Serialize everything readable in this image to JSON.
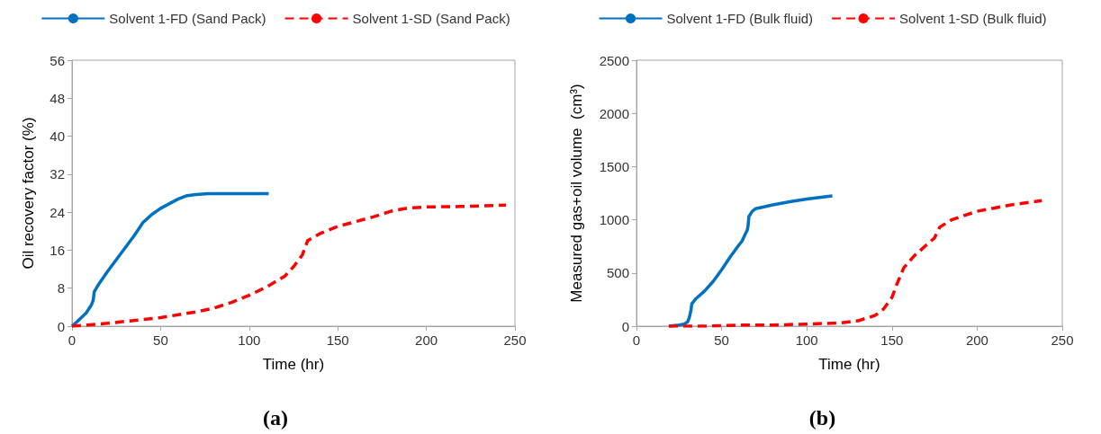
{
  "chart_data": [
    {
      "type": "line",
      "xlabel": "Time (hr)",
      "ylabel": "Oil recovery factor (%)",
      "xlim": [
        0,
        250
      ],
      "xticks": [
        0,
        50,
        100,
        150,
        200,
        250
      ],
      "ylim": [
        0,
        56
      ],
      "yticks": [
        0,
        8,
        16,
        24,
        32,
        40,
        48,
        56
      ],
      "grid": false,
      "legend": "top",
      "marker": "none",
      "annotations": [
        "(a)"
      ],
      "series": [
        {
          "name": "Solvent 1-FD (Sand Pack)",
          "color": "#0070c0",
          "line_style": "solid",
          "x": [
            0,
            3,
            8,
            11,
            12,
            12.5,
            15,
            20,
            25,
            30,
            35,
            40,
            45,
            50,
            55,
            60,
            65,
            70,
            77,
            90,
            111
          ],
          "values": [
            0,
            1,
            2.8,
            4.5,
            5.5,
            7.2,
            8.8,
            11.5,
            14,
            16.5,
            19,
            21.8,
            23.5,
            24.8,
            25.8,
            26.8,
            27.5,
            27.7,
            27.9,
            27.9,
            27.9
          ]
        },
        {
          "name": "Solvent 1-SD (Sand Pack)",
          "color": "#ff0000",
          "line_style": "dashed",
          "x": [
            0,
            10,
            20,
            30,
            40,
            50,
            60,
            70,
            80,
            90,
            100,
            110,
            120,
            125,
            130,
            133,
            140,
            150,
            160,
            170,
            180,
            190,
            200,
            220,
            245
          ],
          "values": [
            0,
            0.3,
            0.6,
            1,
            1.4,
            1.8,
            2.4,
            3,
            3.8,
            5,
            6.5,
            8.3,
            10.5,
            12.5,
            15,
            18,
            19.5,
            21,
            22,
            23,
            24.2,
            24.9,
            25.1,
            25.2,
            25.5
          ]
        }
      ]
    },
    {
      "type": "line",
      "xlabel": "Time (hr)",
      "ylabel": "Measured gas+oil volume  (cm³)",
      "xlim": [
        0,
        250
      ],
      "xticks": [
        0,
        50,
        100,
        150,
        200,
        250
      ],
      "ylim": [
        0,
        2500
      ],
      "yticks": [
        0,
        500,
        1000,
        1500,
        2000,
        2500
      ],
      "grid": false,
      "legend": "top",
      "marker": "none",
      "annotations": [
        "(b)"
      ],
      "series": [
        {
          "name": "Solvent 1-FD (Bulk fluid)",
          "color": "#0070c0",
          "line_style": "solid",
          "x": [
            19,
            25,
            28,
            30,
            31,
            32,
            32.5,
            35,
            40,
            45,
            50,
            55,
            60,
            62,
            64,
            65,
            65.5,
            66,
            68,
            70,
            80,
            90,
            100,
            115
          ],
          "values": [
            0,
            10,
            20,
            40,
            80,
            150,
            210,
            260,
            330,
            420,
            530,
            650,
            760,
            800,
            870,
            900,
            940,
            1030,
            1080,
            1105,
            1140,
            1170,
            1195,
            1225
          ]
        },
        {
          "name": "Solvent 1-SD (Bulk fluid)",
          "color": "#ff0000",
          "line_style": "dashed",
          "x": [
            19,
            40,
            60,
            80,
            100,
            120,
            130,
            140,
            145,
            150,
            153,
            157,
            163,
            170,
            175,
            178,
            185,
            200,
            220,
            238
          ],
          "values": [
            0,
            0,
            10,
            10,
            20,
            30,
            50,
            100,
            160,
            270,
            400,
            550,
            660,
            760,
            830,
            930,
            1000,
            1080,
            1140,
            1180
          ]
        }
      ]
    }
  ]
}
